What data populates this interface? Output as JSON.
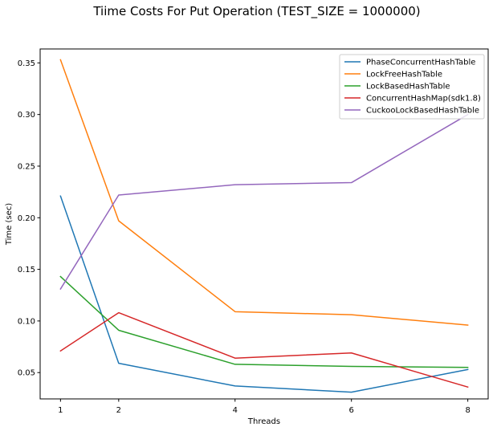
{
  "chart_data": {
    "type": "line",
    "title": "Tiime Costs For Put Operation (TEST_SIZE = 1000000)",
    "xlabel": "Threads",
    "ylabel": "Time (sec)",
    "x": [
      1,
      2,
      4,
      6,
      8
    ],
    "xticks": [
      "1",
      "2",
      "4",
      "6",
      "8"
    ],
    "yticks": [
      "0.05",
      "0.10",
      "0.15",
      "0.20",
      "0.25",
      "0.30",
      "0.35"
    ],
    "ytick_values": [
      0.05,
      0.1,
      0.15,
      0.2,
      0.25,
      0.3,
      0.35
    ],
    "xlim": [
      0.65,
      8.35
    ],
    "ylim": [
      0.0245,
      0.3635
    ],
    "grid": false,
    "legend_position": "top-right",
    "series": [
      {
        "name": "PhaseConcurrentHashTable",
        "color": "#1f77b4",
        "values": [
          0.221,
          0.059,
          0.037,
          0.031,
          0.053
        ]
      },
      {
        "name": "LockFreeHashTable",
        "color": "#ff7f0e",
        "values": [
          0.353,
          0.197,
          0.109,
          0.106,
          0.096
        ]
      },
      {
        "name": "LockBasedHashTable",
        "color": "#2ca02c",
        "values": [
          0.143,
          0.091,
          0.058,
          0.056,
          0.055
        ]
      },
      {
        "name": "ConcurrentHashMap(sdk1.8)",
        "color": "#d62728",
        "values": [
          0.071,
          0.108,
          0.064,
          0.069,
          0.036
        ]
      },
      {
        "name": "CuckooLockBasedHashTable",
        "color": "#9467bd",
        "values": [
          0.131,
          0.222,
          0.232,
          0.234,
          0.3
        ]
      }
    ]
  }
}
